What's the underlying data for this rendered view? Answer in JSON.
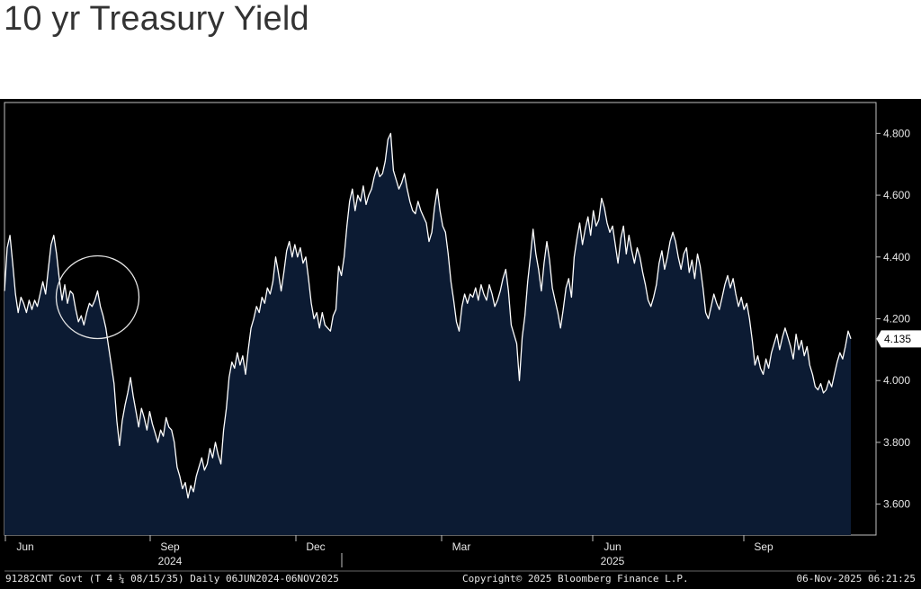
{
  "header": {
    "title": "10 yr Treasury Yield"
  },
  "chart_data": {
    "type": "area",
    "title": "10 yr Treasury Yield",
    "ylim": [
      3.5,
      4.9
    ],
    "y_ticks": [
      "3.600",
      "3.800",
      "4.000",
      "4.200",
      "4.400",
      "4.600",
      "4.800"
    ],
    "x_ticks": [
      "Jun",
      "Sep",
      "Dec",
      "Mar",
      "Jun",
      "Sep"
    ],
    "year_labels": [
      "2024",
      "2025"
    ],
    "last_value": "4.135",
    "grid": false,
    "colors": {
      "fill": "#0c1b33",
      "line": "#ffffff",
      "background": "#000000"
    },
    "series": [
      {
        "values": [
          4.29,
          4.43,
          4.47,
          4.38,
          4.28,
          4.22,
          4.27,
          4.25,
          4.22,
          4.26,
          4.23,
          4.26,
          4.24,
          4.28,
          4.32,
          4.28,
          4.36,
          4.44,
          4.47,
          4.41,
          4.33,
          4.26,
          4.31,
          4.25,
          4.29,
          4.28,
          4.23,
          4.19,
          4.21,
          4.18,
          4.22,
          4.25,
          4.24,
          4.26,
          4.29,
          4.24,
          4.21,
          4.17,
          4.11,
          4.05,
          3.99,
          3.87,
          3.79,
          3.87,
          3.92,
          3.96,
          4.01,
          3.95,
          3.9,
          3.85,
          3.91,
          3.88,
          3.84,
          3.9,
          3.86,
          3.83,
          3.8,
          3.84,
          3.82,
          3.88,
          3.85,
          3.84,
          3.8,
          3.72,
          3.69,
          3.65,
          3.67,
          3.62,
          3.66,
          3.64,
          3.69,
          3.72,
          3.75,
          3.71,
          3.73,
          3.78,
          3.75,
          3.8,
          3.76,
          3.73,
          3.84,
          3.91,
          4.01,
          4.06,
          4.04,
          4.09,
          4.05,
          4.08,
          4.02,
          4.1,
          4.17,
          4.2,
          4.24,
          4.22,
          4.27,
          4.25,
          4.3,
          4.28,
          4.32,
          4.4,
          4.35,
          4.29,
          4.35,
          4.42,
          4.45,
          4.4,
          4.44,
          4.4,
          4.43,
          4.38,
          4.4,
          4.33,
          4.25,
          4.2,
          4.22,
          4.17,
          4.22,
          4.18,
          4.17,
          4.16,
          4.21,
          4.23,
          4.37,
          4.34,
          4.4,
          4.5,
          4.58,
          4.62,
          4.55,
          4.6,
          4.58,
          4.63,
          4.57,
          4.6,
          4.62,
          4.66,
          4.69,
          4.66,
          4.67,
          4.71,
          4.78,
          4.8,
          4.68,
          4.65,
          4.62,
          4.64,
          4.67,
          4.62,
          4.58,
          4.55,
          4.54,
          4.58,
          4.55,
          4.53,
          4.51,
          4.45,
          4.48,
          4.56,
          4.62,
          4.55,
          4.5,
          4.48,
          4.41,
          4.32,
          4.26,
          4.19,
          4.16,
          4.24,
          4.28,
          4.25,
          4.28,
          4.27,
          4.3,
          4.26,
          4.31,
          4.28,
          4.26,
          4.31,
          4.28,
          4.24,
          4.26,
          4.29,
          4.33,
          4.36,
          4.29,
          4.18,
          4.15,
          4.12,
          4.0,
          4.14,
          4.21,
          4.32,
          4.4,
          4.49,
          4.41,
          4.36,
          4.29,
          4.38,
          4.45,
          4.39,
          4.3,
          4.26,
          4.22,
          4.17,
          4.23,
          4.3,
          4.33,
          4.27,
          4.4,
          4.46,
          4.51,
          4.44,
          4.49,
          4.53,
          4.47,
          4.55,
          4.5,
          4.52,
          4.59,
          4.56,
          4.51,
          4.48,
          4.5,
          4.44,
          4.38,
          4.46,
          4.5,
          4.41,
          4.47,
          4.42,
          4.38,
          4.43,
          4.4,
          4.35,
          4.31,
          4.26,
          4.24,
          4.27,
          4.31,
          4.38,
          4.42,
          4.36,
          4.4,
          4.45,
          4.48,
          4.45,
          4.4,
          4.36,
          4.41,
          4.43,
          4.35,
          4.39,
          4.33,
          4.41,
          4.37,
          4.3,
          4.22,
          4.2,
          4.24,
          4.28,
          4.25,
          4.23,
          4.27,
          4.31,
          4.34,
          4.3,
          4.33,
          4.28,
          4.24,
          4.27,
          4.23,
          4.25,
          4.2,
          4.13,
          4.05,
          4.08,
          4.04,
          4.02,
          4.07,
          4.04,
          4.09,
          4.12,
          4.15,
          4.1,
          4.14,
          4.17,
          4.14,
          4.11,
          4.07,
          4.15,
          4.1,
          4.13,
          4.08,
          4.11,
          4.05,
          4.02,
          3.98,
          3.97,
          3.99,
          3.96,
          3.97,
          4.0,
          3.98,
          4.02,
          4.06,
          4.09,
          4.07,
          4.11,
          4.16,
          4.135
        ]
      }
    ]
  },
  "annotation": {
    "shape": "circle"
  },
  "footer": {
    "security": "91282CNT Govt (T 4 ¼ 08/15/35) Daily 06JUN2024-06NOV2025",
    "copyright": "Copyright© 2025 Bloomberg Finance L.P.",
    "timestamp": "06-Nov-2025 06:21:25"
  }
}
